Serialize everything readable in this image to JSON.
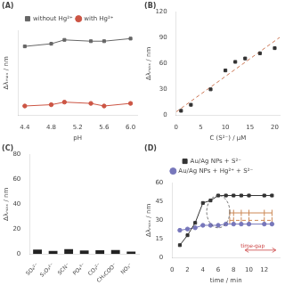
{
  "chart_data": [
    {
      "type": "line",
      "title": "(A)",
      "xlabel": "pH",
      "ylabel": "Δλₘₐₓ / nm",
      "x": [
        4.4,
        4.8,
        5.0,
        5.4,
        5.6,
        6.0
      ],
      "series": [
        {
          "name": "without Hg²⁺",
          "color": "#666666",
          "marker": "square",
          "values": [
            68,
            70,
            73,
            72,
            72,
            74
          ]
        },
        {
          "name": "with Hg²⁺",
          "color": "#cc5544",
          "marker": "circle",
          "values": [
            22,
            23,
            25,
            24,
            22,
            24
          ]
        }
      ],
      "xlim": [
        4.3,
        6.1
      ],
      "ylim": [
        15,
        80
      ],
      "xticks": [
        4.4,
        4.8,
        5.2,
        5.6,
        {
          "value": 6.0,
          "label": "6.0"
        }
      ],
      "yticks": [],
      "tick_labels": "x",
      "grid": false,
      "legend": "top"
    },
    {
      "type": "scatter",
      "title": "(B)",
      "xlabel": "C (S²⁻) / μM",
      "ylabel": "Δλₘₐₓ / nm",
      "series": [
        {
          "type": "scatter",
          "color": "#333333",
          "marker": "square",
          "x": [
            1,
            3,
            7,
            10,
            12,
            14,
            17,
            20
          ],
          "values": [
            5,
            12,
            30,
            52,
            62,
            66,
            72,
            78
          ]
        },
        {
          "type": "line",
          "color": "#cc7755",
          "line_style": "dashed",
          "x": [
            0,
            21
          ],
          "values": [
            3.7353,
            90.5147
          ]
        }
      ],
      "xlim": [
        0,
        21
      ],
      "ylim": [
        0,
        120
      ],
      "xticks": [
        0,
        5,
        10,
        15,
        20
      ],
      "yticks": [
        0,
        30,
        60,
        90,
        120
      ],
      "grid": false
    },
    {
      "type": "bar",
      "title": "(C)",
      "ylabel": "Δλₘₐₓ / nm",
      "categories": [
        "SO₄²⁻",
        "S₂O₃²⁻",
        "SCN⁻",
        "PO₄³⁻",
        "CO₃²⁻",
        "CH₃COO⁻",
        "NO₃⁻"
      ],
      "values": [
        3.5,
        2.5,
        3.8,
        2.8,
        3.0,
        3.2,
        2.0
      ],
      "color": "#222222",
      "ylim": [
        0,
        80
      ],
      "yticks": [
        0,
        20,
        40,
        60,
        80
      ],
      "grid": false
    },
    {
      "type": "line",
      "title": "(D)",
      "xlabel": "time / min",
      "ylabel": "Δλₘₐₓ / nm",
      "series": [
        {
          "name": "Au/Ag NPs + S²⁻",
          "color": "#333333",
          "marker": "square",
          "x": [
            1,
            2,
            3,
            4,
            5,
            6,
            7,
            8,
            9,
            10,
            12,
            13
          ],
          "values": [
            10,
            18,
            28,
            44,
            46,
            50,
            50,
            50,
            50,
            50,
            50,
            50
          ]
        },
        {
          "name": "Au/Ag NPs + Hg²⁺ + S²⁻",
          "color": "#7777bb",
          "marker": "circle",
          "x": [
            1,
            2,
            3,
            4,
            5,
            6,
            7,
            8,
            9,
            10,
            12,
            13
          ],
          "values": [
            22,
            23,
            24,
            26,
            26,
            26,
            27,
            27,
            27,
            27,
            27,
            27
          ]
        },
        {
          "color": "#cc8855",
          "marker": "vline",
          "line_style": "solid",
          "x": [
            7.5,
            8,
            9,
            10,
            12,
            13
          ],
          "values": [
            36,
            36,
            36,
            36,
            36,
            36
          ]
        },
        {
          "color": "#cc8855",
          "marker": "vline",
          "line_style": "dashed",
          "x": [
            7.5,
            8,
            9,
            10,
            12,
            13
          ],
          "values": [
            30,
            30,
            30,
            30,
            30,
            30
          ]
        }
      ],
      "annotations": [
        {
          "text": "time-gap",
          "x": 10.5,
          "y": 8,
          "color": "#cc4444"
        }
      ],
      "arrows": [
        {
          "x": [
            9.5,
            13.5
          ],
          "y": 6,
          "color": "#cc4444"
        }
      ],
      "ellipses": [
        {
          "x": 6.0,
          "y": 37,
          "width": 3.0,
          "height": 26,
          "color": "#555555"
        }
      ],
      "xlim": [
        0,
        14
      ],
      "ylim": [
        0,
        60
      ],
      "xticks": [
        0,
        2,
        4,
        6,
        8,
        10,
        12
      ],
      "yticks": [
        0,
        15,
        30,
        45,
        60
      ],
      "grid": false,
      "legend": "top"
    }
  ]
}
